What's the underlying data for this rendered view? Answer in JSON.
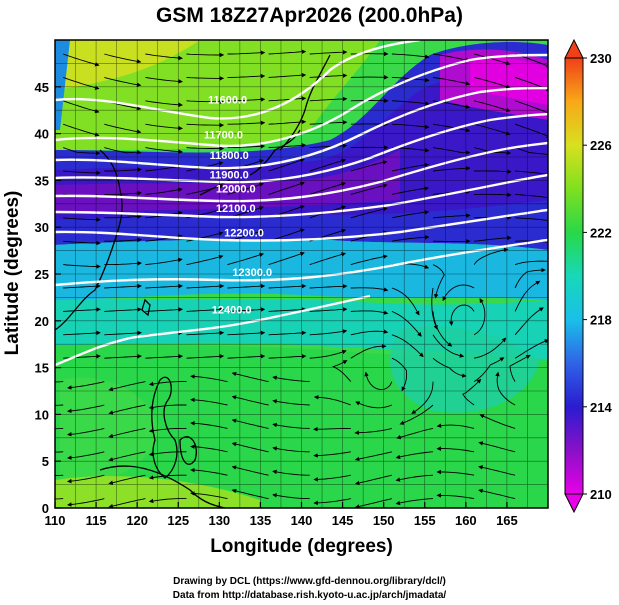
{
  "title": "GSM 18Z27Apr2026 (200.0hPa)",
  "xlabel": "Longitude (degrees)",
  "ylabel": "Latitude (degrees)",
  "credits": [
    "Drawing by DCL (https://www.gfd-dennou.org/library/dcl/)",
    "Data from http://database.rish.kyoto-u.ac.jp/arch/jmadata/"
  ],
  "map": {
    "lon_range": [
      110,
      170
    ],
    "lat_range": [
      0,
      50
    ],
    "lon_ticks": [
      "110",
      "115",
      "120",
      "125",
      "130",
      "135",
      "140",
      "145",
      "150",
      "155",
      "160",
      "165"
    ],
    "lat_ticks": [
      "0",
      "5",
      "10",
      "15",
      "20",
      "25",
      "30",
      "35",
      "40",
      "45"
    ],
    "grid": true,
    "field": "temperature (shaded) with wind streamlines and geopotential height contours"
  },
  "colorbar": {
    "min": 210,
    "max": 230,
    "tick_labels": [
      "210",
      "214",
      "218",
      "222",
      "226",
      "230"
    ],
    "colors": [
      "#e800e8",
      "#8a10c8",
      "#2a1cd0",
      "#2f63e8",
      "#19c0e8",
      "#18d8b8",
      "#28d848",
      "#80e020",
      "#d8e020",
      "#f8a818",
      "#f04018"
    ]
  },
  "contours": [
    {
      "label": "11600.0",
      "lon": 131,
      "lat": 43.2
    },
    {
      "label": "11700.0",
      "lon": 130.5,
      "lat": 39.5
    },
    {
      "label": "11800.0",
      "lon": 131.2,
      "lat": 37.3
    },
    {
      "label": "11900.0",
      "lon": 131.2,
      "lat": 35.2
    },
    {
      "label": "12000.0",
      "lon": 132,
      "lat": 33.7
    },
    {
      "label": "12100.0",
      "lon": 132,
      "lat": 31.6
    },
    {
      "label": "12200.0",
      "lon": 133,
      "lat": 29.0
    },
    {
      "label": "12300.0",
      "lon": 134,
      "lat": 24.8
    },
    {
      "label": "12400.0",
      "lon": 131.5,
      "lat": 20.8
    }
  ]
}
